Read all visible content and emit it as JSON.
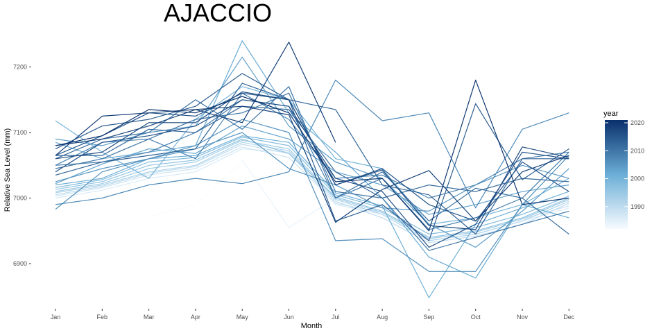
{
  "chart_data": {
    "type": "line",
    "title": "AJACCIO",
    "xlabel": "Month",
    "ylabel": "Relative Sea Level (mm)",
    "categories": [
      "Jan",
      "Feb",
      "Mar",
      "Apr",
      "May",
      "Jun",
      "Jul",
      "Aug",
      "Sep",
      "Oct",
      "Nov",
      "Dec"
    ],
    "y_ticks": [
      6900,
      7000,
      7100,
      7200
    ],
    "ylim": [
      6840,
      7255
    ],
    "grid": false,
    "legend": {
      "title": "year",
      "position": "right",
      "type": "colorbar",
      "range": [
        1982,
        2021
      ],
      "ticks": [
        1990,
        2000,
        2010,
        2020
      ],
      "color_low": "#f7fbff",
      "color_high": "#08306b"
    },
    "series": [
      {
        "year": 1982,
        "values": [
          null,
          null,
          6972,
          6990,
          7055,
          null,
          null,
          null,
          null,
          null,
          null,
          null
        ]
      },
      {
        "year": 1984,
        "values": [
          null,
          null,
          null,
          null,
          7058,
          6955,
          7000,
          null,
          null,
          null,
          null,
          null
        ]
      },
      {
        "year": 1986,
        "values": [
          7000,
          7012,
          7030,
          7040,
          7075,
          7070,
          6990,
          6975,
          6935,
          6945,
          6965,
          6985
        ]
      },
      {
        "year": 1988,
        "values": [
          7003,
          7016,
          7035,
          7045,
          7078,
          7062,
          6992,
          6978,
          6938,
          6948,
          6968,
          6988
        ]
      },
      {
        "year": 1990,
        "values": [
          7005,
          7018,
          7038,
          7048,
          7082,
          7068,
          6995,
          6970,
          6932,
          6942,
          6960,
          6992
        ]
      },
      {
        "year": 1992,
        "values": [
          7008,
          7020,
          7040,
          7050,
          7085,
          7072,
          6998,
          6975,
          6935,
          6945,
          6965,
          6995
        ]
      },
      {
        "year": 1994,
        "values": [
          7010,
          7022,
          7045,
          7055,
          7088,
          7075,
          7000,
          6978,
          6938,
          6948,
          6968,
          6998
        ]
      },
      {
        "year": 1996,
        "values": [
          7013,
          7025,
          7050,
          7058,
          7090,
          7068,
          7002,
          6980,
          6940,
          6950,
          6970,
          7000
        ]
      },
      {
        "year": 1998,
        "values": [
          7016,
          7028,
          7055,
          7062,
          7093,
          7080,
          7005,
          6985,
          6945,
          6955,
          6975,
          7003
        ]
      },
      {
        "year": 2000,
        "values": [
          7118,
          7070,
          7030,
          7120,
          7170,
          7150,
          7060,
          7045,
          6960,
          6970,
          6990,
          7030
        ]
      },
      {
        "year": 2001,
        "values": [
          7020,
          7030,
          7060,
          7065,
          7095,
          7085,
          7008,
          6988,
          6848,
          6960,
          6985,
          7010
        ]
      },
      {
        "year": 2002,
        "values": [
          7085,
          7060,
          7070,
          7080,
          7240,
          7130,
          7070,
          7000,
          6910,
          6878,
          6990,
          6970
        ]
      },
      {
        "year": 2003,
        "values": [
          7022,
          7052,
          7075,
          7068,
          7110,
          7090,
          7040,
          7020,
          6975,
          6990,
          7010,
          7020
        ]
      },
      {
        "year": 2004,
        "values": [
          7090,
          7080,
          7100,
          7110,
          7215,
          7110,
          7055,
          7030,
          6960,
          6925,
          6980,
          7045
        ]
      },
      {
        "year": 2005,
        "values": [
          7025,
          7045,
          7060,
          7075,
          7100,
          7045,
          7020,
          6985,
          6980,
          7020,
          7050,
          7030
        ]
      },
      {
        "year": 2006,
        "values": [
          6983,
          7040,
          7060,
          7080,
          7120,
          7100,
          6935,
          6938,
          6888,
          6888,
          6990,
          7065
        ]
      },
      {
        "year": 2007,
        "values": [
          6990,
          7000,
          7020,
          7030,
          7022,
          7040,
          7180,
          7118,
          7130,
          6985,
          7105,
          7130
        ]
      },
      {
        "year": 2008,
        "values": [
          7050,
          7085,
          7090,
          7060,
          7160,
          7120,
          7030,
          7035,
          7000,
          7020,
          7060,
          7070
        ]
      },
      {
        "year": 2009,
        "values": [
          7050,
          7055,
          7070,
          7100,
          7150,
          7140,
          7000,
          7030,
          6952,
          6970,
          7000,
          7070
        ]
      },
      {
        "year": 2010,
        "values": [
          7045,
          7060,
          7090,
          7120,
          7130,
          7160,
          7010,
          7000,
          6920,
          6940,
          6960,
          6980
        ]
      },
      {
        "year": 2011,
        "values": [
          7060,
          7090,
          7100,
          7150,
          7105,
          7170,
          7000,
          7040,
          6965,
          7015,
          7000,
          6945
        ]
      },
      {
        "year": 2012,
        "values": [
          7065,
          7065,
          7105,
          7100,
          7140,
          7135,
          7040,
          7000,
          7020,
          7010,
          7030,
          7025
        ]
      },
      {
        "year": 2013,
        "values": [
          7035,
          7055,
          7065,
          7075,
          7175,
          7150,
          7135,
          7020,
          7005,
          6945,
          7060,
          7060
        ]
      },
      {
        "year": 2014,
        "values": [
          7075,
          7110,
          7120,
          7140,
          7190,
          7150,
          6965,
          6990,
          6935,
          7144,
          7028,
          7075
        ]
      },
      {
        "year": 2015,
        "values": [
          7065,
          7095,
          7130,
          7125,
          7160,
          7150,
          7020,
          7045,
          6990,
          6965,
          7055,
          7010
        ]
      },
      {
        "year": 2016,
        "values": [
          7040,
          7085,
          7095,
          7110,
          7150,
          7140,
          7030,
          7010,
          6925,
          6960,
          7070,
          7060
        ]
      },
      {
        "year": 2017,
        "values": [
          7060,
          7070,
          7115,
          7115,
          7162,
          7150,
          7020,
          7043,
          6958,
          6952,
          7078,
          7062
        ]
      },
      {
        "year": 2018,
        "values": [
          7080,
          7090,
          7110,
          7135,
          7140,
          7127,
          6963,
          7013,
          7042,
          6965,
          7040,
          7065
        ]
      },
      {
        "year": 2019,
        "values": [
          7065,
          7125,
          7130,
          7135,
          7115,
          7238,
          7085,
          null,
          null,
          null,
          null,
          null
        ]
      },
      {
        "year": 2020,
        "values": [
          7080,
          7095,
          7135,
          7130,
          7155,
          7130,
          7025,
          7030,
          6950,
          7180,
          6990,
          7000
        ]
      }
    ]
  }
}
